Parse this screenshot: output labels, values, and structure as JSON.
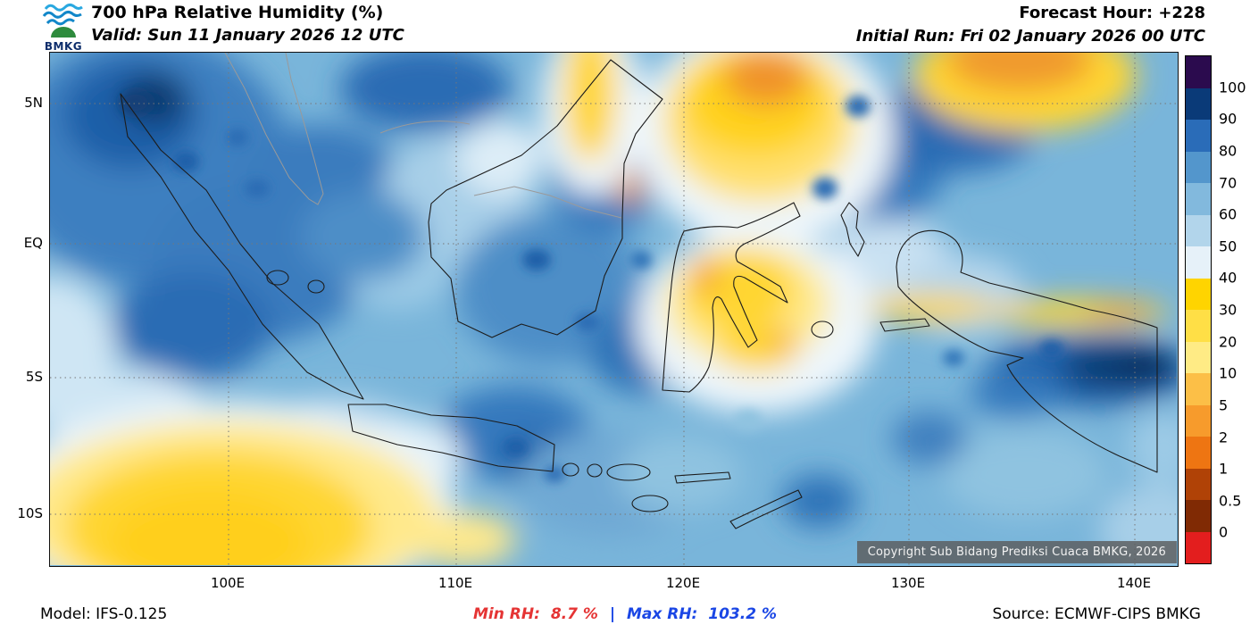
{
  "header": {
    "logo_text": "BMKG",
    "title": "700 hPa Relative Humidity (%)",
    "valid": "Valid: Sun 11 January 2026 12 UTC",
    "forecast_hour": "Forecast Hour: +228",
    "initial_run": "Initial Run: Fri 02 January 2026 00 UTC"
  },
  "map": {
    "lat_labels": [
      "5N",
      "EQ",
      "5S",
      "10S"
    ],
    "lon_labels": [
      "100E",
      "110E",
      "120E",
      "130E",
      "140E"
    ],
    "copyright": "Copyright Sub Bidang Prediksi Cuaca BMKG, 2026"
  },
  "legend": {
    "labels": [
      "100",
      "90",
      "80",
      "70",
      "60",
      "50",
      "40",
      "30",
      "20",
      "10",
      "5",
      "2",
      "1",
      "0.5",
      "0"
    ],
    "colors": [
      "#2b0b4e",
      "#0a3a78",
      "#2a6cb8",
      "#5396cc",
      "#82b9dd",
      "#b2d5eb",
      "#e6f1f9",
      "#ffd400",
      "#ffdf46",
      "#ffeb85",
      "#fcbf47",
      "#f79b2c",
      "#ee7512",
      "#b04206",
      "#802a04",
      "#e31e1e"
    ]
  },
  "footer": {
    "model": "Model: IFS-0.125",
    "min_label": "Min RH:",
    "min_value": "8.7 %",
    "separator": "|",
    "max_label": "Max RH:",
    "max_value": "103.2 %",
    "source": "Source: ECMWF-CIPS BMKG"
  },
  "chart_data": {
    "type": "heatmap",
    "title": "700 hPa Relative Humidity (%)",
    "valid_time": "Sun 11 January 2026 12 UTC",
    "initial_run": "Fri 02 January 2026 00 UTC",
    "forecast_hour": "+228",
    "model": "IFS-0.125",
    "source": "ECMWF-CIPS BMKG",
    "region": "Indonesia",
    "min_rh_percent": 8.7,
    "max_rh_percent": 103.2,
    "legend_levels": [
      100,
      90,
      80,
      70,
      60,
      50,
      40,
      30,
      20,
      10,
      5,
      2,
      1,
      0.5,
      0
    ],
    "legend_colors": [
      "#2b0b4e",
      "#0a3a78",
      "#2a6cb8",
      "#5396cc",
      "#82b9dd",
      "#b2d5eb",
      "#e6f1f9",
      "#ffd400",
      "#ffdf46",
      "#ffeb85",
      "#fcbf47",
      "#f79b2c",
      "#ee7512",
      "#b04206",
      "#802a04",
      "#e31e1e"
    ],
    "x_axis": {
      "label_type": "longitude",
      "ticks": [
        "100E",
        "110E",
        "120E",
        "130E",
        "140E"
      ]
    },
    "y_axis": {
      "label_type": "latitude",
      "ticks": [
        "5N",
        "EQ",
        "5S",
        "10S"
      ]
    },
    "grid": true,
    "legend_position": "right"
  }
}
